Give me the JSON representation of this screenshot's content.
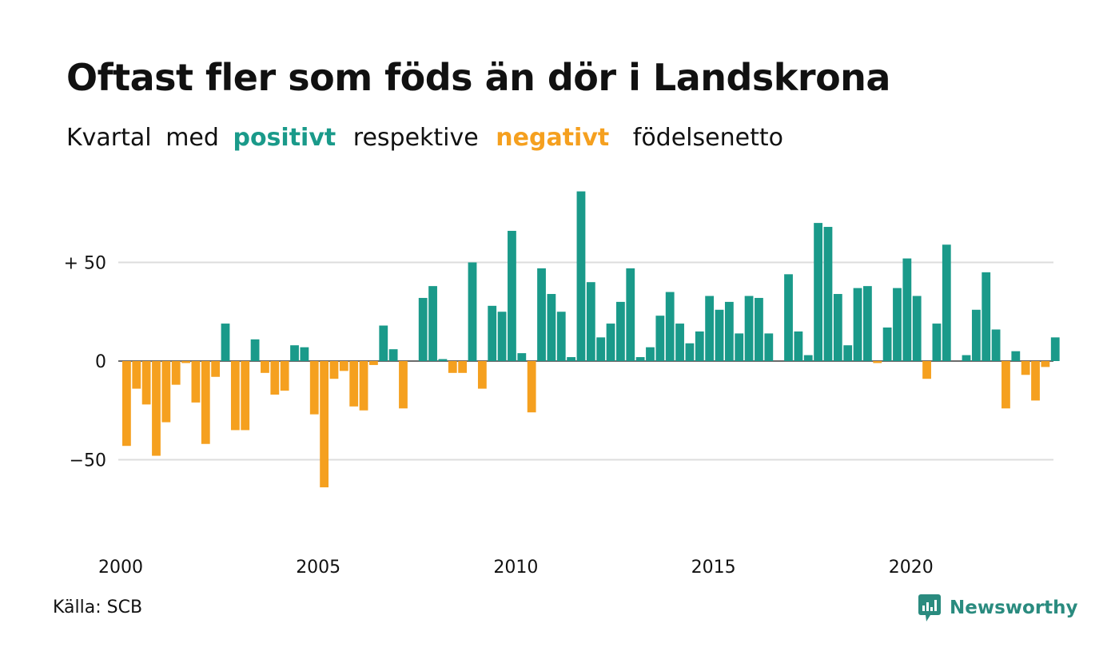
{
  "title": "Oftast fler som föds än dör i Landskrona",
  "subtitle": {
    "part1": "Kvartal",
    "part2": "med",
    "positive": "positivt",
    "part3": "respektive",
    "negative": "negativt",
    "part4": "födelsenetto"
  },
  "source": "Källa: SCB",
  "logo": {
    "text": "Newsworthy",
    "icon": "newsworthy-logo-icon"
  },
  "colors": {
    "positive": "#1a9a8a",
    "negative": "#f5a01f",
    "grid": "#dddddd",
    "axis": "#111111"
  },
  "chart_data": {
    "type": "bar",
    "x_start": "2000 Q1",
    "x_labels": [
      "2000",
      "2005",
      "2010",
      "2015",
      "2020"
    ],
    "y_ticks": [
      {
        "value": 50,
        "label": "+ 50"
      },
      {
        "value": 0,
        "label": "0"
      },
      {
        "value": -50,
        "label": "−50"
      }
    ],
    "ylim": [
      -75,
      90
    ],
    "values": [
      -43,
      -14,
      -22,
      -48,
      -31,
      -12,
      -1,
      -21,
      -42,
      -8,
      19,
      -35,
      -35,
      11,
      -6,
      -17,
      -15,
      8,
      7,
      -27,
      -64,
      -9,
      -5,
      -23,
      -25,
      -2,
      18,
      6,
      -24,
      0,
      32,
      38,
      1,
      -6,
      -6,
      50,
      -14,
      28,
      25,
      66,
      4,
      -26,
      47,
      34,
      25,
      2,
      86,
      40,
      12,
      19,
      30,
      47,
      2,
      7,
      23,
      35,
      19,
      9,
      15,
      33,
      26,
      30,
      14,
      33,
      32,
      14,
      0,
      44,
      15,
      3,
      70,
      68,
      34,
      8,
      37,
      38,
      -1,
      17,
      37,
      52,
      33,
      -9,
      19,
      59,
      0,
      3,
      26,
      45,
      16,
      -24,
      5,
      -7,
      -20,
      -3,
      12
    ]
  }
}
